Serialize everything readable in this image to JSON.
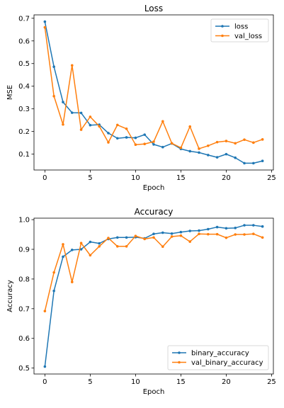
{
  "chart_data": [
    {
      "type": "line",
      "title": "Loss",
      "xlabel": "Epoch",
      "ylabel": "MSE",
      "xlim": [
        -1.2,
        25.2
      ],
      "ylim": [
        0.03,
        0.715
      ],
      "xticks": [
        0,
        5,
        10,
        15,
        20,
        25
      ],
      "yticks": [
        0.1,
        0.2,
        0.3,
        0.4,
        0.5,
        0.6,
        0.7
      ],
      "ytick_labels": [
        "0.1",
        "0.2",
        "0.3",
        "0.4",
        "0.5",
        "0.6",
        "0.7"
      ],
      "legend_position": "top-right",
      "x": [
        0,
        1,
        2,
        3,
        4,
        5,
        6,
        7,
        8,
        9,
        10,
        11,
        12,
        13,
        14,
        15,
        16,
        17,
        18,
        19,
        20,
        21,
        22,
        23,
        24
      ],
      "series": [
        {
          "name": "loss",
          "color": "#1f77b4",
          "values": [
            0.685,
            0.486,
            0.33,
            0.283,
            0.282,
            0.228,
            0.23,
            0.193,
            0.17,
            0.174,
            0.172,
            0.186,
            0.143,
            0.131,
            0.147,
            0.123,
            0.113,
            0.107,
            0.096,
            0.086,
            0.1,
            0.084,
            0.06,
            0.06,
            0.07
          ]
        },
        {
          "name": "val_loss",
          "color": "#ff7f0e",
          "values": [
            0.66,
            0.356,
            0.231,
            0.492,
            0.208,
            0.265,
            0.223,
            0.152,
            0.229,
            0.212,
            0.142,
            0.145,
            0.155,
            0.245,
            0.148,
            0.128,
            0.222,
            0.124,
            0.137,
            0.153,
            0.158,
            0.148,
            0.164,
            0.151,
            0.165
          ]
        }
      ]
    },
    {
      "type": "line",
      "title": "Accuracy",
      "xlabel": "Epoch",
      "ylabel": "Accuracy",
      "xlim": [
        -1.2,
        25.2
      ],
      "ylim": [
        0.48,
        1.005
      ],
      "xticks": [
        0,
        5,
        10,
        15,
        20,
        25
      ],
      "yticks": [
        0.5,
        0.6,
        0.7,
        0.8,
        0.9,
        1.0
      ],
      "ytick_labels": [
        "0.5",
        "0.6",
        "0.7",
        "0.8",
        "0.9",
        "1.0"
      ],
      "legend_position": "lower-right",
      "x": [
        0,
        1,
        2,
        3,
        4,
        5,
        6,
        7,
        8,
        9,
        10,
        11,
        12,
        13,
        14,
        15,
        16,
        17,
        18,
        19,
        20,
        21,
        22,
        23,
        24
      ],
      "series": [
        {
          "name": "binary_accuracy",
          "color": "#1f77b4",
          "values": [
            0.505,
            0.76,
            0.875,
            0.898,
            0.9,
            0.925,
            0.92,
            0.935,
            0.94,
            0.94,
            0.941,
            0.937,
            0.952,
            0.956,
            0.953,
            0.958,
            0.962,
            0.963,
            0.968,
            0.975,
            0.971,
            0.972,
            0.981,
            0.981,
            0.977
          ]
        },
        {
          "name": "val_binary_accuracy",
          "color": "#ff7f0e",
          "values": [
            0.692,
            0.822,
            0.917,
            0.79,
            0.921,
            0.88,
            0.91,
            0.938,
            0.91,
            0.91,
            0.945,
            0.935,
            0.94,
            0.909,
            0.943,
            0.946,
            0.926,
            0.952,
            0.951,
            0.951,
            0.939,
            0.95,
            0.95,
            0.952,
            0.94
          ]
        }
      ]
    }
  ]
}
